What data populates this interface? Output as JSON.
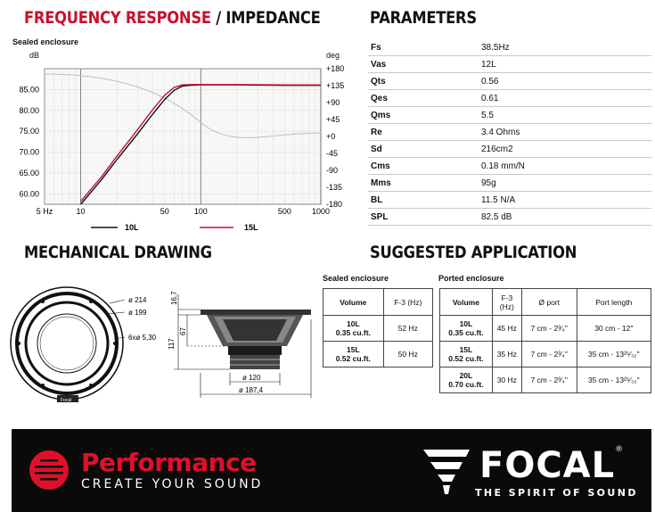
{
  "freq": {
    "title_a": "FREQUENCY RESPONSE",
    "title_b": "/ IMPEDANCE",
    "subtitle": "Sealed enclosure",
    "left_unit": "dB",
    "right_unit": "deg",
    "db_ticks": [
      "85.00",
      "80.00",
      "75.00",
      "70.00",
      "65.00",
      "60.00"
    ],
    "deg_ticks": [
      "+180",
      "+135",
      "+90",
      "+45",
      "+0",
      "-45",
      "-90",
      "-135",
      "-180"
    ],
    "x_ticks": [
      "5 Hz",
      "10",
      "50",
      "100",
      "500",
      "1000"
    ],
    "legend": [
      {
        "label": "10L",
        "color": "#111111"
      },
      {
        "label": "15L",
        "color": "#c8102e"
      }
    ]
  },
  "chart_data": {
    "type": "line",
    "title": "Sealed enclosure",
    "xscale": "log",
    "xlim": [
      5,
      1000
    ],
    "ylim": [
      57.5,
      90
    ],
    "ylabel": "dB",
    "y2label": "deg",
    "series": [
      {
        "name": "10L",
        "color": "#111111",
        "x": [
          10,
          15,
          20,
          30,
          40,
          50,
          60,
          70,
          80,
          100,
          200,
          500,
          1000
        ],
        "y": [
          57.5,
          63.5,
          68.2,
          74.5,
          79.2,
          82.6,
          84.8,
          85.8,
          86.0,
          86.1,
          86.1,
          86.0,
          86.0
        ]
      },
      {
        "name": "15L",
        "color": "#c8102e",
        "x": [
          10,
          15,
          20,
          30,
          40,
          50,
          60,
          70,
          80,
          100,
          200,
          500,
          1000
        ],
        "y": [
          58.2,
          64.2,
          69.0,
          75.5,
          80.3,
          83.6,
          85.5,
          86.1,
          86.2,
          86.2,
          86.2,
          86.1,
          86.1
        ]
      }
    ]
  },
  "params": {
    "title": "PARAMETERS",
    "rows": [
      {
        "k": "Fs",
        "v": "38.5Hz"
      },
      {
        "k": "Vas",
        "v": "12L"
      },
      {
        "k": "Qts",
        "v": "0.56"
      },
      {
        "k": "Qes",
        "v": "0.61"
      },
      {
        "k": "Qms",
        "v": "5.5"
      },
      {
        "k": "Re",
        "v": "3.4 Ohms"
      },
      {
        "k": "Sd",
        "v": "216cm2"
      },
      {
        "k": "Cms",
        "v": "0.18 mm/N"
      },
      {
        "k": "Mms",
        "v": "95g"
      },
      {
        "k": "BL",
        "v": "11.5 N/A"
      },
      {
        "k": "SPL",
        "v": "82.5 dB"
      }
    ]
  },
  "mech": {
    "title": "MECHANICAL DRAWING",
    "d1": "ø 214",
    "d2": "ø 199",
    "holes": "6xø 5,30",
    "h1": "16,7",
    "h2": "67",
    "h3": "117",
    "w1": "ø 120",
    "w2": "ø 187,4",
    "logo": "Focal"
  },
  "app": {
    "title": "SUGGESTED APPLICATION",
    "sealed_label": "Sealed enclosure",
    "ported_label": "Ported enclosure",
    "sealed_headers": [
      "Volume",
      "F-3 (Hz)"
    ],
    "sealed_rows": [
      {
        "vol": "10L",
        "cu": "0.35 cu.ft.",
        "f3": "52 Hz"
      },
      {
        "vol": "15L",
        "cu": "0.52 cu.ft.",
        "f3": "50 Hz"
      }
    ],
    "ported_headers": [
      "Volume",
      "F-3 (Hz)",
      "Ø port",
      "Port length"
    ],
    "ported_rows": [
      {
        "vol": "10L",
        "cu": "0.35 cu.ft.",
        "f3": "45 Hz",
        "port": "7 cm - 2³⁄₄\"",
        "len": "30 cm - 12\""
      },
      {
        "vol": "15L",
        "cu": "0.52 cu.ft.",
        "f3": "35 Hz",
        "port": "7 cm - 2³⁄₄\"",
        "len": "35 cm - 13²⁵⁄₃₂\""
      },
      {
        "vol": "20L",
        "cu": "0.70 cu.ft.",
        "f3": "30 Hz",
        "port": "7 cm - 2³⁄₄\"",
        "len": "35 cm - 13²⁵⁄₃₂\""
      }
    ]
  },
  "footer": {
    "performance": "Performance",
    "tagline": "CREATE YOUR SOUND",
    "brand": "FOCAL",
    "reg": "®",
    "spirit": "THE SPIRIT OF SOUND"
  }
}
